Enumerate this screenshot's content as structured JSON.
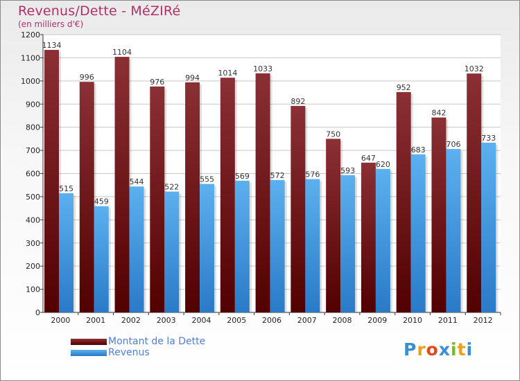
{
  "chart_data": {
    "type": "bar",
    "title": "Revenus/Dette - MéZIRé",
    "subtitle": "(en milliers d'€)",
    "categories": [
      "2000",
      "2001",
      "2002",
      "2003",
      "2004",
      "2005",
      "2006",
      "2007",
      "2008",
      "2009",
      "2010",
      "2011",
      "2012"
    ],
    "series": [
      {
        "name": "Montant de la Dette",
        "color": "#7a1f27",
        "values": [
          1134,
          996,
          1104,
          976,
          994,
          1014,
          1033,
          892,
          750,
          647,
          952,
          842,
          1032
        ]
      },
      {
        "name": "Revenus",
        "color": "#4fa3e6",
        "values": [
          515,
          459,
          544,
          522,
          555,
          569,
          572,
          576,
          593,
          620,
          683,
          706,
          733
        ]
      }
    ],
    "ylim": [
      0,
      1200
    ],
    "yticks": [
      0,
      100,
      200,
      300,
      400,
      500,
      600,
      700,
      800,
      900,
      1000,
      1100,
      1200
    ],
    "grid": true,
    "legend": "bottom-left"
  },
  "logo": {
    "letters": [
      "P",
      "r",
      "o",
      "x",
      "i",
      "t",
      "i"
    ],
    "colors": [
      "#3a8fd1",
      "#e8a21c",
      "#e04a1f",
      "#3a8fd1",
      "#7ab82e",
      "#e8a21c",
      "#3a8fd1"
    ]
  }
}
